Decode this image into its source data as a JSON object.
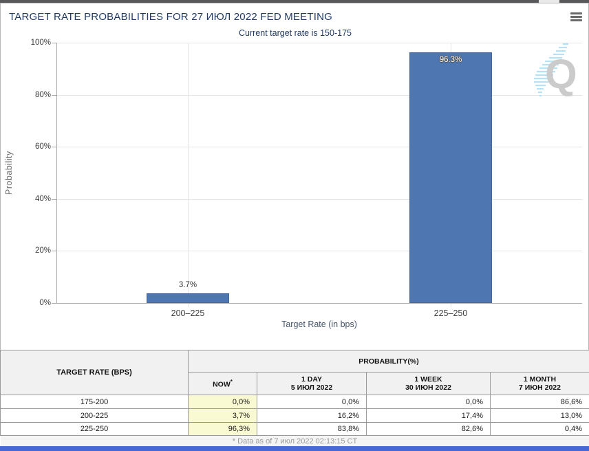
{
  "header": {
    "title": "TARGET RATE PROBABILITIES FOR 27 ИЮЛ 2022 FED MEETING",
    "menu_icon": "hamburger-icon"
  },
  "subtitle": "Current target rate is 150-175",
  "chart_data": {
    "type": "bar",
    "title": "Target Rate Probabilities for 27 ИЮЛ 2022 Fed Meeting",
    "categories": [
      "200–225",
      "225–250"
    ],
    "values": [
      3.7,
      96.3
    ],
    "value_labels": [
      "3.7%",
      "96.3%"
    ],
    "xlabel": "Target Rate (in bps)",
    "ylabel": "Probability",
    "ylim": [
      0,
      100
    ],
    "yticks": [
      "0%",
      "20%",
      "40%",
      "60%",
      "80%",
      "100%"
    ],
    "grid": "on",
    "legend": "none",
    "bar_color": "#4e77b2"
  },
  "watermark": {
    "letter": "Q",
    "icon": "quikstrike-logo-icon"
  },
  "table": {
    "col1_header": "TARGET RATE (BPS)",
    "group_header": "PROBABILITY(%)",
    "columns": [
      {
        "label": "NOW",
        "sup": "*",
        "date": ""
      },
      {
        "label": "1 DAY",
        "date": "5 ИЮЛ 2022"
      },
      {
        "label": "1 WEEK",
        "date": "30 ИЮН 2022"
      },
      {
        "label": "1 MONTH",
        "date": "7 ИЮН 2022"
      }
    ],
    "rows": [
      {
        "range": "175-200",
        "now": "0,0%",
        "day": "0,0%",
        "week": "0,0%",
        "month": "86,6%"
      },
      {
        "range": "200-225",
        "now": "3,7%",
        "day": "16,2%",
        "week": "17,4%",
        "month": "13,0%"
      },
      {
        "range": "225-250",
        "now": "96,3%",
        "day": "83,8%",
        "week": "82,6%",
        "month": "0,4%"
      }
    ],
    "footnote": "* Data as of 7 июл 2022 02:13:15 CT"
  },
  "colors": {
    "accent_navy": "#213a66",
    "bar_fill": "#4e77b2",
    "now_column_highlight": "#fafad2",
    "bottom_bar_blue": "#4868d6",
    "watermark_gray": "#cbcbcb",
    "watermark_blue": "#b5e3f5"
  }
}
